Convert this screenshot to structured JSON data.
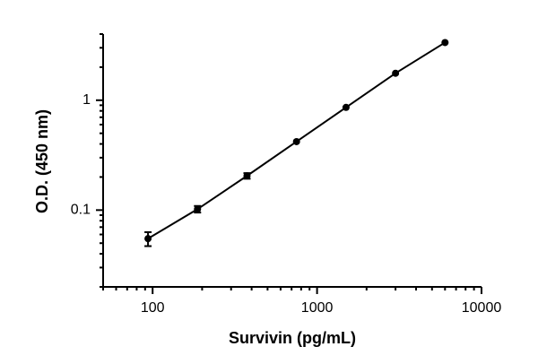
{
  "chart_data": {
    "type": "scatter",
    "log_x": true,
    "log_y": true,
    "x_label": "Survivin (pg/mL)",
    "y_label": "O.D. (450 nm)",
    "x": [
      93.75,
      187.5,
      375,
      750,
      1500,
      3000,
      6000
    ],
    "series": [
      {
        "color": "#000000",
        "values": [
          0.055,
          0.102,
          0.205,
          0.42,
          0.86,
          1.76,
          3.35
        ],
        "errors": [
          0.008,
          0.007,
          0.012,
          null,
          null,
          null,
          null
        ]
      }
    ],
    "xlim": [
      50,
      10000
    ],
    "xticks": [
      100,
      1000,
      10000
    ],
    "xminor_ticks": [
      50,
      60,
      70,
      80,
      90,
      200,
      300,
      400,
      500,
      600,
      700,
      800,
      900,
      2000,
      3000,
      4000,
      5000,
      6000,
      7000,
      8000,
      9000
    ],
    "ylim": [
      0.02,
      4
    ],
    "yticks": [
      0.1,
      1
    ],
    "yminor_ticks": [
      0.02,
      0.03,
      0.04,
      0.05,
      0.06,
      0.07,
      0.08,
      0.09,
      0.2,
      0.3,
      0.4,
      0.5,
      0.6,
      0.7,
      0.8,
      0.9,
      2,
      3,
      4
    ]
  }
}
